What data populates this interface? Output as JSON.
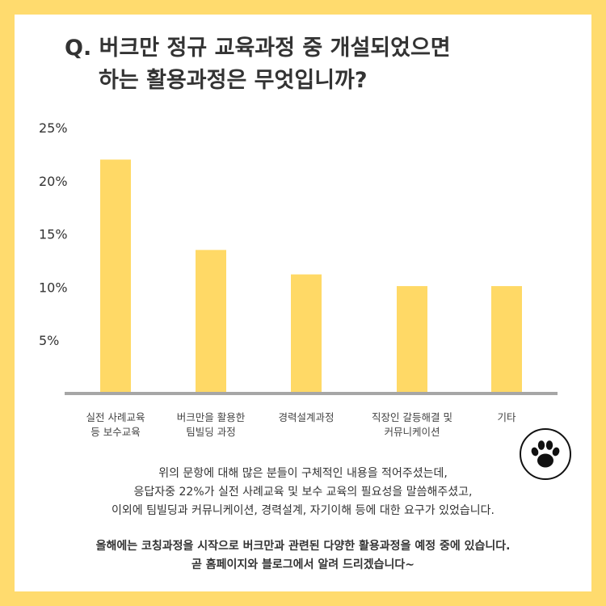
{
  "colors": {
    "frame": "#ffdb6e",
    "bar": "#ffd966",
    "axis": "#a6a6a6",
    "text": "#333333"
  },
  "header": {
    "title_line1": "Q. 버크만 정규 교육과정 중 개설되었으면",
    "title_line2": "하는 활용과정은 무엇입니까?"
  },
  "chart_data": {
    "type": "bar",
    "categories": [
      [
        "실전 사례교육",
        "등 보수교육"
      ],
      [
        "버크만을 활용한",
        "팀빌딩 과정"
      ],
      [
        "경력설계과정"
      ],
      [
        "직장인 갈등해결 및",
        "커뮤니케이션"
      ],
      [
        "기타"
      ]
    ],
    "values": [
      22,
      13.5,
      11.2,
      10.1,
      10.1
    ],
    "unit": "%",
    "yticks": [
      "25%",
      "20%",
      "15%",
      "10%",
      "5%"
    ],
    "ytick_values": [
      25,
      20,
      15,
      10,
      5
    ],
    "ylim": [
      0,
      25
    ],
    "grid": false,
    "title": "Q. 버크만 정규 교육과정 중 개설되었으면 하는 활용과정은 무엇입니까?"
  },
  "icon": {
    "name": "paw-icon"
  },
  "body": {
    "paragraph1": [
      "위의 문항에 대해 많은 분들이 구체적인 내용을 적어주셨는데,",
      "응답자중 22%가 실전 사례교육 및 보수 교육의 필요성을 말씀해주셨고,",
      "이외에 팀빌딩과 커뮤니케이션, 경력설계, 자기이해 등에 대한 요구가 있었습니다."
    ],
    "paragraph2": [
      "올해에는 코칭과정을 시작으로 버크만과 관련된 다양한 활용과정을 예정 중에 있습니다.",
      "곧 홈페이지와 블로그에서 알려 드리겠습니다~"
    ]
  }
}
